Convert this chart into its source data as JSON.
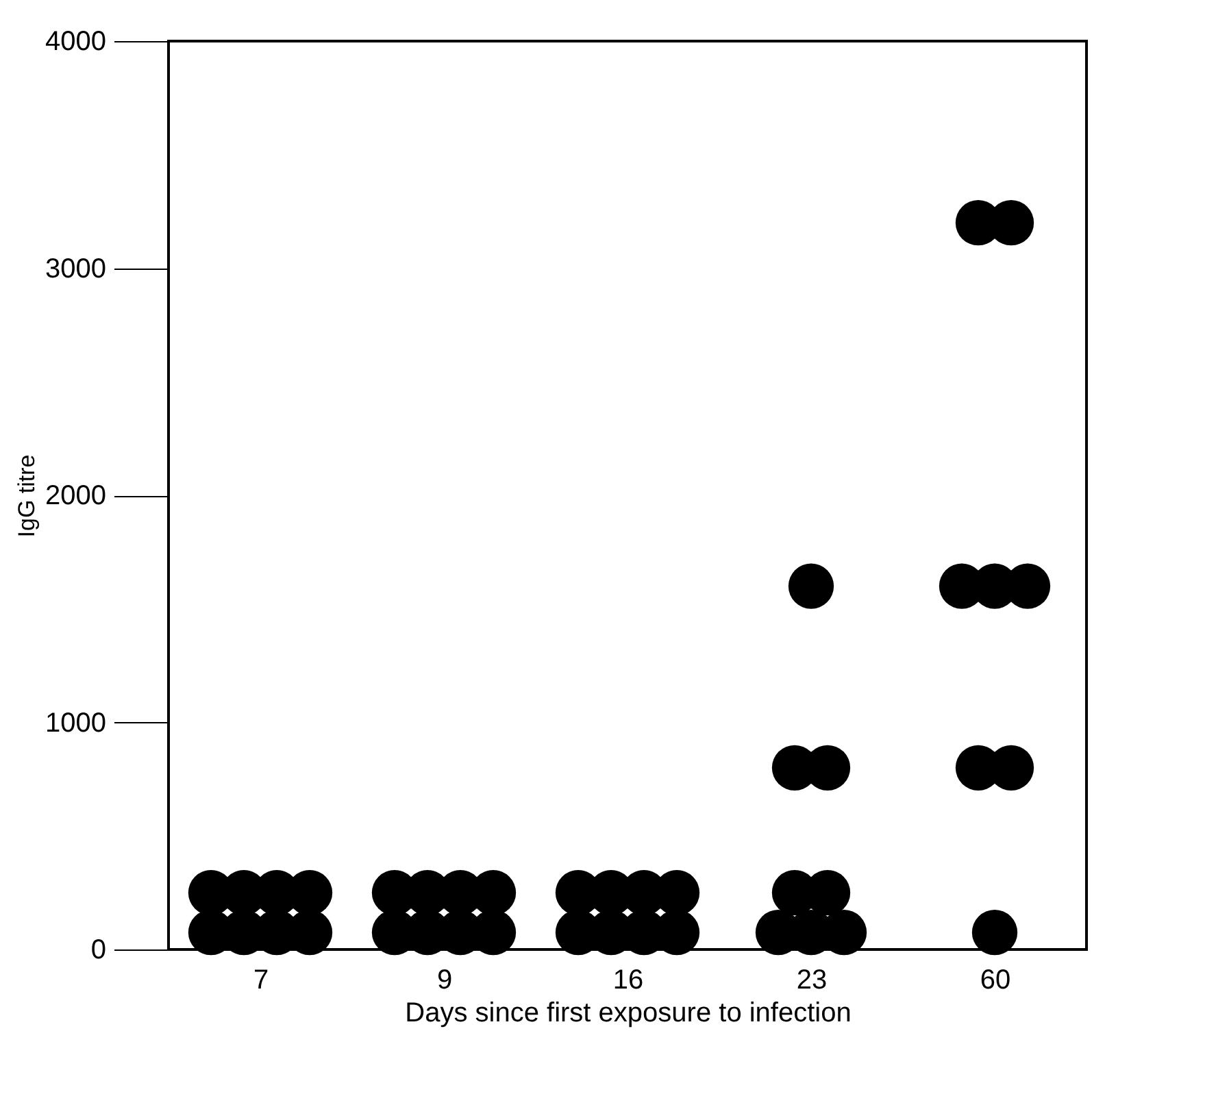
{
  "chart_data": {
    "type": "scatter",
    "xlabel": "Days since first exposure to infection",
    "ylabel": "IgG titre",
    "categories": [
      "7",
      "9",
      "16",
      "23",
      "60"
    ],
    "series": [
      {
        "color": "#000000",
        "x": [
          "7",
          "7",
          "7",
          "7",
          "7",
          "7",
          "7",
          "7",
          "9",
          "9",
          "9",
          "9",
          "9",
          "9",
          "9",
          "9",
          "16",
          "16",
          "16",
          "16",
          "16",
          "16",
          "16",
          "16",
          "23",
          "23",
          "23",
          "23",
          "23",
          "23",
          "23",
          "23",
          "60",
          "60",
          "60",
          "60",
          "60",
          "60",
          "60",
          "60"
        ],
        "values": [
          250,
          250,
          250,
          250,
          75,
          75,
          75,
          75,
          250,
          250,
          250,
          250,
          75,
          75,
          75,
          75,
          250,
          250,
          250,
          250,
          75,
          75,
          75,
          75,
          800,
          800,
          1600,
          250,
          250,
          75,
          75,
          75,
          3200,
          3200,
          1600,
          1600,
          1600,
          800,
          800,
          75
        ]
      }
    ],
    "ylim": [
      0,
      4000
    ],
    "yticks": [
      0,
      1000,
      2000,
      3000,
      4000
    ],
    "grid": false,
    "marker": "circle"
  }
}
